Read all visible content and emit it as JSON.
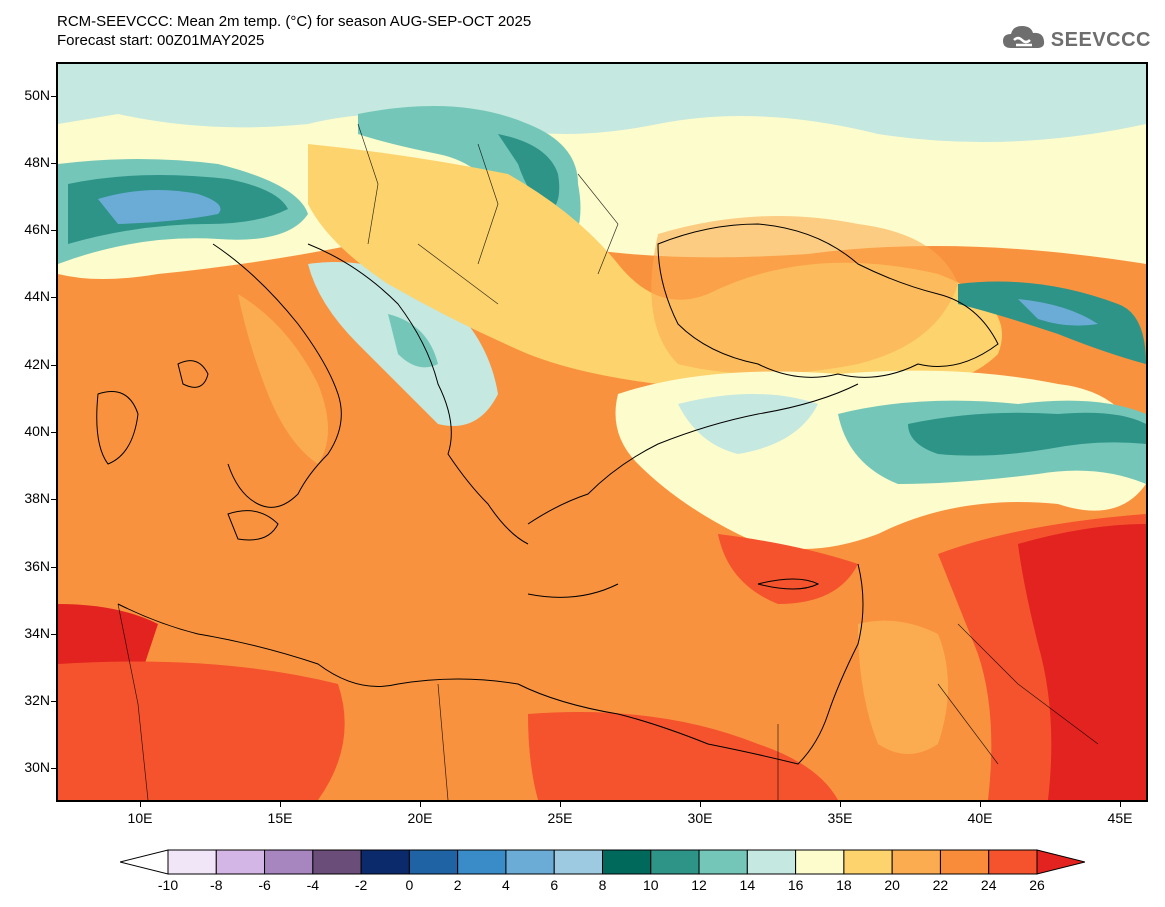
{
  "header": {
    "title_line1": "RCM-SEEVCCC: Mean 2m temp. (°C) for season AUG-SEP-OCT 2025",
    "title_line2": "Forecast start: 00Z01MAY2025",
    "logo_text": "SEEVCCC",
    "logo_icon": "cloud-icon"
  },
  "map": {
    "lat_labels": [
      "50N",
      "48N",
      "46N",
      "44N",
      "42N",
      "40N",
      "38N",
      "36N",
      "34N",
      "32N",
      "30N"
    ],
    "lon_labels": [
      "10E",
      "15E",
      "20E",
      "25E",
      "30E",
      "35E",
      "40E",
      "45E"
    ],
    "lat_range": [
      29,
      51
    ],
    "lon_range": [
      7,
      46
    ]
  },
  "legend": {
    "labels": [
      "-10",
      "-8",
      "-6",
      "-4",
      "-2",
      "0",
      "2",
      "4",
      "6",
      "8",
      "10",
      "12",
      "14",
      "16",
      "18",
      "20",
      "22",
      "24",
      "26"
    ],
    "colors": [
      "#f0e6f7",
      "#d4b6e6",
      "#a785bf",
      "#6a4d78",
      "#0b2a6b",
      "#1f63a4",
      "#3a8cc9",
      "#6aacd6",
      "#9ecae1",
      "#00695c",
      "#2e9488",
      "#74c7b8",
      "#c5e8e0",
      "#fdfccc",
      "#fdd36e",
      "#fbac50",
      "#f98c3a",
      "#f4532d",
      "#e2231f"
    ],
    "under_color": "#ffffff",
    "over_color": "#e2231f"
  }
}
